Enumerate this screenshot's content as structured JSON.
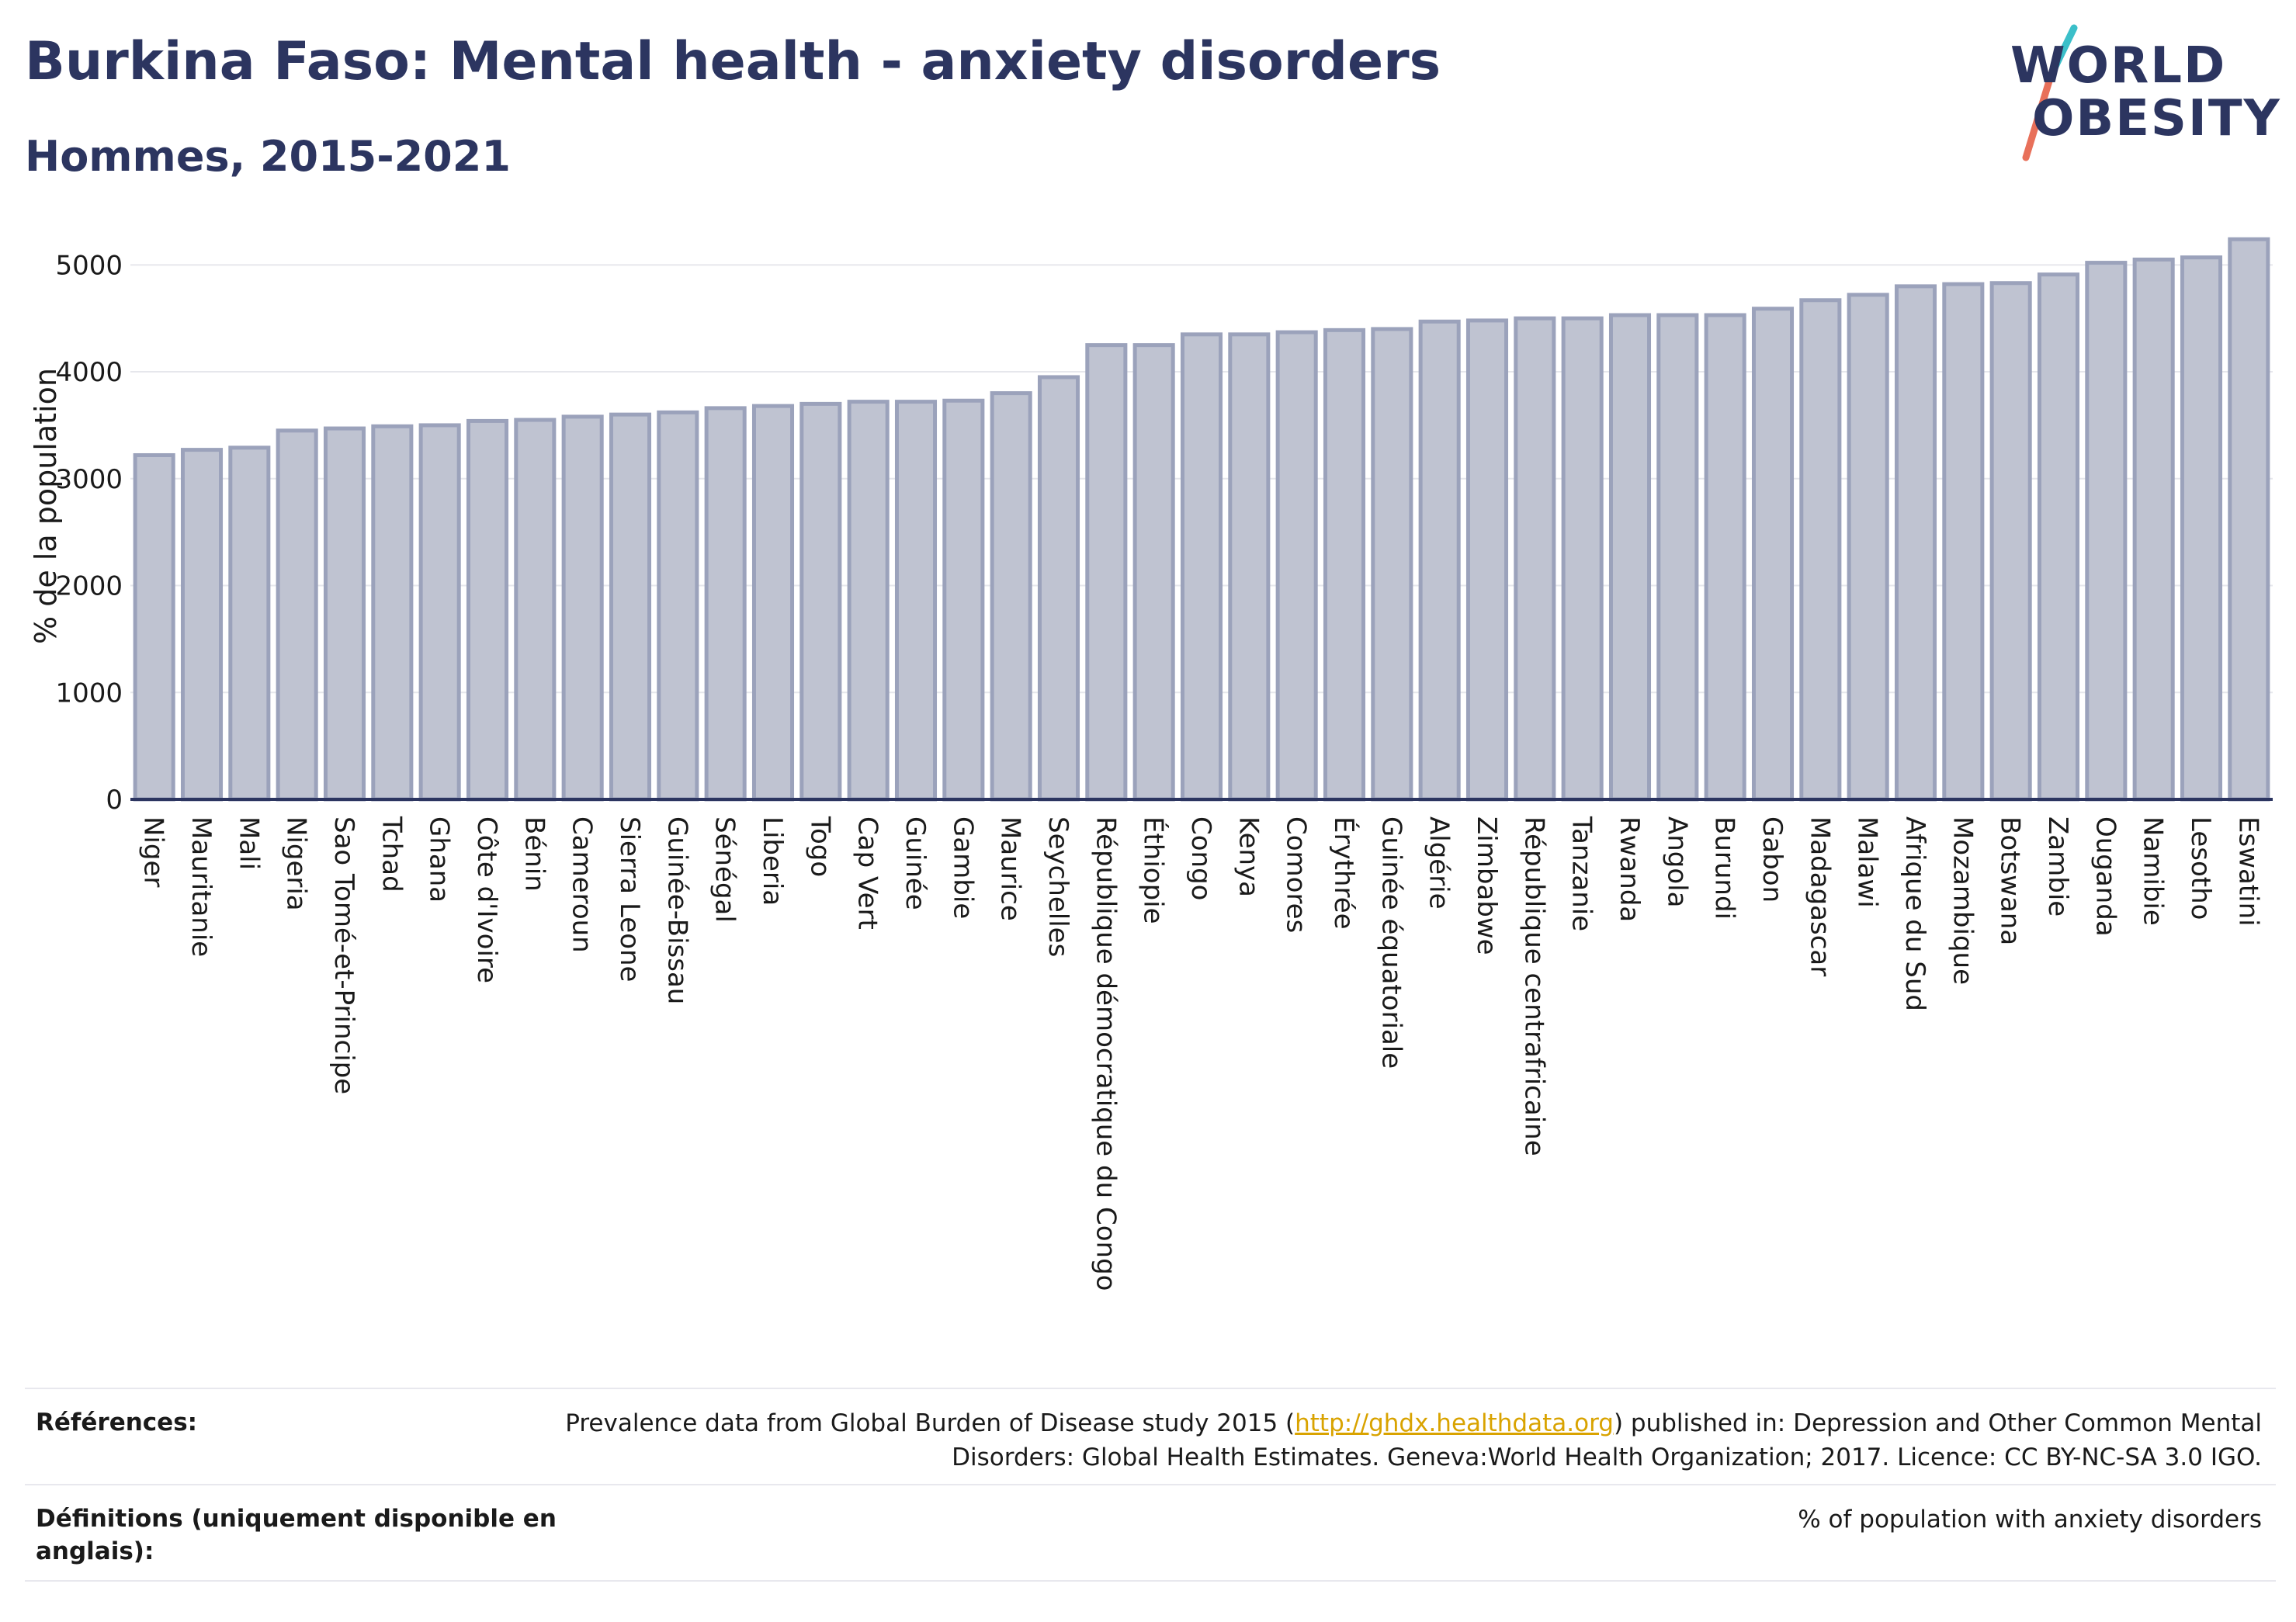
{
  "header": {
    "title": "Burkina Faso: Mental health - anxiety disorders",
    "subtitle": "Hommes, 2015-2021"
  },
  "logo": {
    "line1": "WORLD",
    "line2": "OBESITY",
    "colors": {
      "text": "#2c3560",
      "slash_top": "#3bbfc9",
      "slash_bottom": "#e8705a"
    }
  },
  "chart_data": {
    "type": "bar",
    "title": "",
    "xlabel": "",
    "ylabel": "% de la population",
    "ylim": [
      0,
      5300
    ],
    "yticks": [
      0,
      1000,
      2000,
      3000,
      4000,
      5000
    ],
    "grid": true,
    "bar_fill": "#bfc3d1",
    "bar_stroke": "#9ba2bb",
    "categories": [
      "Niger",
      "Mauritanie",
      "Mali",
      "Nigeria",
      "Sao Tomé-et-Principe",
      "Tchad",
      "Ghana",
      "Côte d'Ivoire",
      "Bénin",
      "Cameroun",
      "Sierra Leone",
      "Guinée-Bissau",
      "Sénégal",
      "Liberia",
      "Togo",
      "Cap Vert",
      "Guinée",
      "Gambie",
      "Maurice",
      "Seychelles",
      "République démocratique du Congo",
      "Éthiopie",
      "Congo",
      "Kenya",
      "Comores",
      "Érythrée",
      "Guinée équatoriale",
      "Algérie",
      "Zimbabwe",
      "République centrafricaine",
      "Tanzanie",
      "Rwanda",
      "Angola",
      "Burundi",
      "Gabon",
      "Madagascar",
      "Malawi",
      "Afrique du Sud",
      "Mozambique",
      "Botswana",
      "Zambie",
      "Ouganda",
      "Namibie",
      "Lesotho",
      "Eswatini"
    ],
    "values": [
      3220,
      3270,
      3290,
      3450,
      3470,
      3490,
      3500,
      3540,
      3550,
      3580,
      3600,
      3620,
      3660,
      3680,
      3700,
      3720,
      3720,
      3730,
      3800,
      3950,
      4250,
      4250,
      4350,
      4350,
      4370,
      4390,
      4400,
      4470,
      4480,
      4500,
      4500,
      4530,
      4530,
      4530,
      4590,
      4670,
      4720,
      4800,
      4820,
      4830,
      4910,
      5020,
      5050,
      5070,
      5240
    ]
  },
  "references": {
    "label": "Références:",
    "text_before": "Prevalence data from Global Burden of Disease study 2015 (",
    "link": "http://ghdx.healthdata.org",
    "text_after": ") published in: Depression and Other Common Mental Disorders: Global Health Estimates. Geneva:World Health Organization; 2017. Licence: CC BY-NC-SA 3.0 IGO."
  },
  "definitions": {
    "label": "Définitions (uniquement disponible en anglais):",
    "text": "% of population with anxiety disorders"
  }
}
